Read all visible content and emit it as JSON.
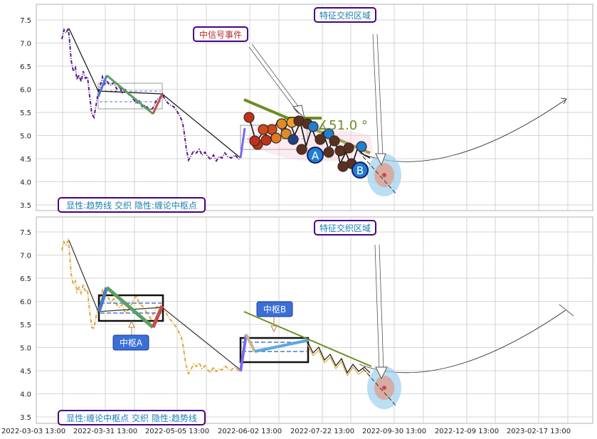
{
  "colors": {
    "grid": "#c8c8c8",
    "frame": "#b0b0b0",
    "price_top": "#5a1a8a",
    "price_bottom": "#e0a838",
    "trend": "#111111",
    "callout_border": "#4b0082",
    "callout_text_top": "#1a7fb5",
    "callout_text_event": "#b03030",
    "pivot_label_bg": "#3a6fd8",
    "green": "#6b8e23",
    "blue_leg": "#4a78c8",
    "red_leg": "#c84b4b"
  },
  "axes": {
    "x_ticks": [
      "2022-03-03 13:00",
      "2022-03-31 13:00",
      "2022-05-05 13:00",
      "2022-06-02 13:00",
      "2022-07-22 13:00",
      "2022-09-30 13:00",
      "2022-12-09 13:00",
      "2023-02-17 13:00"
    ],
    "y_ticks": [
      "7.5",
      "7.0",
      "6.5",
      "6.0",
      "5.5",
      "5.0",
      "4.5",
      "4.0",
      "3.5"
    ]
  },
  "top_panel": {
    "legend": "显性:趋势线 交织 隐性:缠论中枢点",
    "callout_region": "特征交织区域",
    "callout_event": "中信号事件",
    "angle_label": "∡51.0 °",
    "marker_a": "A",
    "marker_b": "B"
  },
  "bottom_panel": {
    "legend": "显性:缠论中枢点 交织 隐性:趋势线",
    "callout_region": "特征交织区域",
    "pivot_a": "中枢A",
    "pivot_b": "中枢B"
  },
  "chart_data": [
    {
      "type": "line",
      "panel": "top",
      "ylim": [
        3.35,
        7.85
      ],
      "x_range": [
        "2022-03-03",
        "2023-03-15"
      ],
      "series": [
        {
          "values": [
            [
              0,
              7.1
            ],
            [
              4,
              7.3
            ],
            [
              8,
              6.6
            ],
            [
              12,
              6.2
            ],
            [
              16,
              6.4
            ],
            [
              20,
              5.6
            ],
            [
              24,
              5.8
            ],
            [
              28,
              5.9
            ],
            [
              32,
              6.1
            ],
            [
              36,
              6.0
            ],
            [
              40,
              6.1
            ],
            [
              44,
              5.9
            ],
            [
              48,
              5.6
            ],
            [
              52,
              5.8
            ],
            [
              56,
              5.9
            ],
            [
              60,
              5.7
            ],
            [
              64,
              5.5
            ],
            [
              68,
              5.6
            ],
            [
              72,
              5.2
            ],
            [
              76,
              4.6
            ],
            [
              80,
              4.8
            ],
            [
              86,
              4.5
            ],
            [
              92,
              4.7
            ],
            [
              98,
              4.6
            ],
            [
              104,
              4.5
            ],
            [
              110,
              4.9
            ],
            [
              116,
              4.7
            ],
            [
              122,
              4.9
            ],
            [
              128,
              4.8
            ],
            [
              134,
              4.9
            ],
            [
              140,
              5.0
            ],
            [
              146,
              4.9
            ],
            [
              152,
              4.7
            ],
            [
              158,
              4.6
            ],
            [
              164,
              4.7
            ],
            [
              170,
              4.5
            ],
            [
              176,
              4.4
            ]
          ]
        }
      ],
      "pivots": [
        {
          "x_from": 20,
          "x_to": 60,
          "y_low": 5.58,
          "y_high": 6.12
        },
        {
          "x_from": 104,
          "x_to": 138,
          "y_low": 4.72,
          "y_high": 5.2
        }
      ],
      "reference_curve": {
        "start": [
          150,
          4.6
        ],
        "bottom": [
          221,
          4.35
        ],
        "end": [
          296,
          5.8
        ]
      }
    },
    {
      "type": "line",
      "panel": "bottom",
      "ylim": [
        3.35,
        7.85
      ],
      "x_range": [
        "2022-03-03",
        "2023-03-15"
      ],
      "series": [
        {
          "values": [
            [
              0,
              7.1
            ],
            [
              4,
              7.3
            ],
            [
              8,
              6.5
            ],
            [
              12,
              6.2
            ],
            [
              16,
              6.3
            ],
            [
              20,
              5.5
            ],
            [
              24,
              5.9
            ],
            [
              28,
              6.1
            ],
            [
              32,
              6.0
            ],
            [
              36,
              6.0
            ],
            [
              40,
              5.8
            ],
            [
              44,
              5.7
            ],
            [
              48,
              5.6
            ],
            [
              52,
              5.5
            ],
            [
              56,
              5.8
            ],
            [
              60,
              5.7
            ],
            [
              64,
              5.5
            ],
            [
              68,
              5.3
            ],
            [
              72,
              4.9
            ],
            [
              76,
              4.6
            ],
            [
              80,
              4.7
            ],
            [
              86,
              4.5
            ],
            [
              92,
              4.6
            ],
            [
              98,
              4.5
            ],
            [
              104,
              4.6
            ],
            [
              110,
              5.1
            ],
            [
              116,
              4.9
            ],
            [
              122,
              5.0
            ],
            [
              128,
              5.0
            ],
            [
              134,
              5.1
            ],
            [
              140,
              4.9
            ],
            [
              146,
              4.8
            ],
            [
              152,
              4.7
            ],
            [
              158,
              4.6
            ],
            [
              164,
              4.6
            ],
            [
              170,
              4.5
            ],
            [
              176,
              4.4
            ]
          ]
        }
      ],
      "pivots": [
        {
          "x_from": 20,
          "x_to": 52,
          "y_low": 5.55,
          "y_high": 6.12
        },
        {
          "x_from": 94,
          "x_to": 128,
          "y_low": 4.68,
          "y_high": 5.22
        }
      ],
      "reference_curve": {
        "start": [
          150,
          4.6
        ],
        "bottom": [
          221,
          4.38
        ],
        "end": [
          296,
          5.8
        ]
      }
    }
  ]
}
